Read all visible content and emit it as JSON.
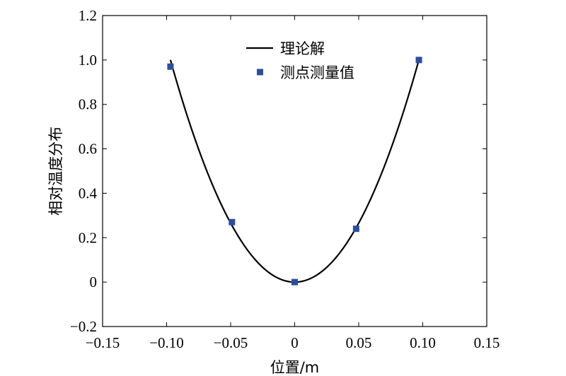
{
  "chart_data": {
    "type": "line",
    "xlabel": "位置/m",
    "ylabel": "相对温度分布",
    "xlim": [
      -0.15,
      0.15
    ],
    "ylim": [
      -0.2,
      1.2
    ],
    "xticks": [
      -0.15,
      -0.1,
      -0.05,
      0,
      0.05,
      0.1,
      0.15
    ],
    "xtick_labels": [
      "−0.15",
      "−0.10",
      "−0.05",
      "0",
      "0.05",
      "0.10",
      "0.15"
    ],
    "yticks": [
      -0.2,
      0,
      0.2,
      0.4,
      0.6,
      0.8,
      1.0,
      1.2
    ],
    "ytick_labels": [
      "−0.2",
      "0",
      "0.2",
      "0.4",
      "0.6",
      "0.8",
      "1.0",
      "1.2"
    ],
    "grid": false,
    "legend_position": "top-center",
    "series": [
      {
        "name": "理论解",
        "kind": "line",
        "color": "#000000",
        "x_range": [
          -0.097,
          0.097
        ],
        "formula": "y = x^2 / 0.097^2"
      },
      {
        "name": "测点测量值",
        "kind": "scatter",
        "marker": "square",
        "color": "#2b4ea2",
        "x": [
          -0.097,
          -0.049,
          0.0,
          0.048,
          0.097
        ],
        "y": [
          0.97,
          0.27,
          0.0,
          0.24,
          1.0
        ]
      }
    ]
  }
}
